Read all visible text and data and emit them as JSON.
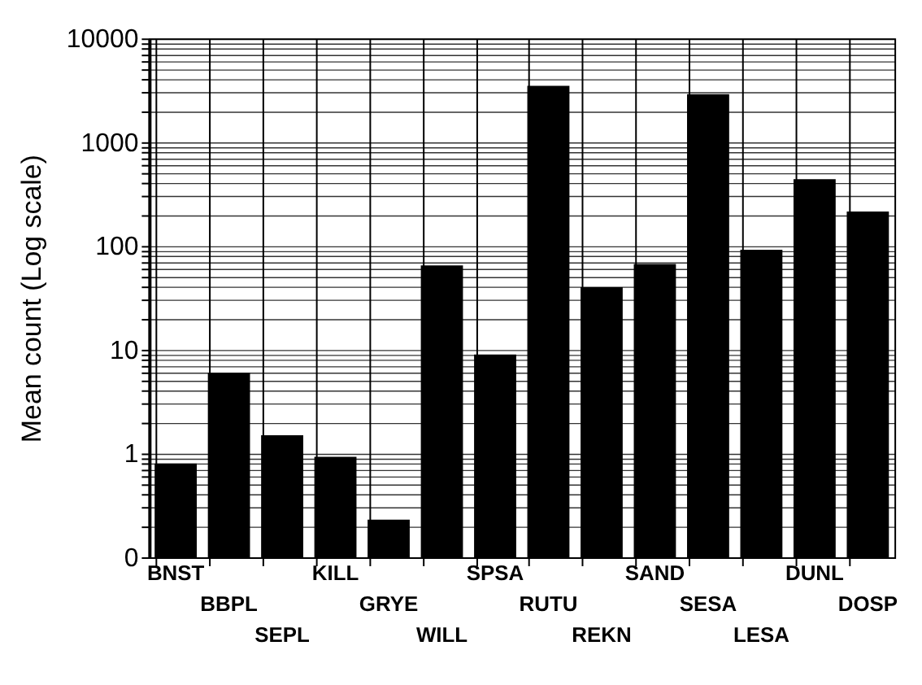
{
  "chart_data": {
    "type": "bar",
    "ylabel": "Mean count (Log scale)",
    "categories": [
      "BNST",
      "BBPL",
      "SEPL",
      "KILL",
      "GRYE",
      "WILL",
      "SPSA",
      "RUTU",
      "REKN",
      "SAND",
      "SESA",
      "LESA",
      "DUNL",
      "DOSP"
    ],
    "values": [
      0.8,
      6,
      1.5,
      0.93,
      0.23,
      65,
      9,
      3500,
      40,
      67,
      2900,
      92,
      440,
      215
    ],
    "color": "#000000",
    "log": true,
    "grid": true,
    "ylim": [
      0.1,
      10000
    ],
    "yticks": [
      {
        "value": 0.1,
        "label": "0"
      },
      {
        "value": 0.2,
        "label": null
      },
      {
        "value": 0.3,
        "label": null
      },
      {
        "value": 0.4,
        "label": null
      },
      {
        "value": 0.5,
        "label": null
      },
      {
        "value": 0.6,
        "label": null
      },
      {
        "value": 0.7,
        "label": null
      },
      {
        "value": 0.8,
        "label": null
      },
      {
        "value": 0.9,
        "label": null
      },
      1,
      {
        "value": 2,
        "label": null
      },
      {
        "value": 3,
        "label": null
      },
      {
        "value": 4,
        "label": null
      },
      {
        "value": 5,
        "label": null
      },
      {
        "value": 6,
        "label": null
      },
      {
        "value": 7,
        "label": null
      },
      {
        "value": 8,
        "label": null
      },
      {
        "value": 9,
        "label": null
      },
      10,
      {
        "value": 20,
        "label": null
      },
      {
        "value": 30,
        "label": null
      },
      {
        "value": 40,
        "label": null
      },
      {
        "value": 50,
        "label": null
      },
      {
        "value": 60,
        "label": null
      },
      {
        "value": 70,
        "label": null
      },
      {
        "value": 80,
        "label": null
      },
      {
        "value": 90,
        "label": null
      },
      100,
      {
        "value": 200,
        "label": null
      },
      {
        "value": 300,
        "label": null
      },
      {
        "value": 400,
        "label": null
      },
      {
        "value": 500,
        "label": null
      },
      {
        "value": 600,
        "label": null
      },
      {
        "value": 700,
        "label": null
      },
      {
        "value": 800,
        "label": null
      },
      {
        "value": 900,
        "label": null
      },
      1000,
      {
        "value": 2000,
        "label": null
      },
      {
        "value": 3000,
        "label": null
      },
      {
        "value": 4000,
        "label": null
      },
      {
        "value": 5000,
        "label": null
      },
      {
        "value": 6000,
        "label": null
      },
      {
        "value": 7000,
        "label": null
      },
      {
        "value": 8000,
        "label": null
      },
      {
        "value": 9000,
        "label": null
      },
      10000
    ]
  }
}
